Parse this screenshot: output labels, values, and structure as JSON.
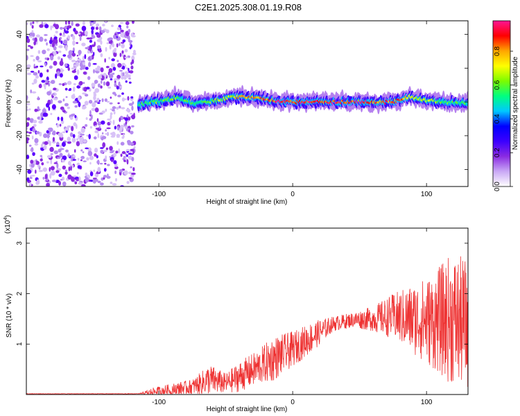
{
  "title": "C2E1.2025.308.01.19.R08",
  "chart_data": [
    {
      "type": "heatmap",
      "xlabel": "Height of straight line (km)",
      "ylabel": "Frequency (Hz)",
      "xlim": [
        -199,
        131
      ],
      "ylim": [
        -50,
        48
      ],
      "xticks": [
        -100,
        0,
        100
      ],
      "yticks": [
        -40,
        -20,
        0,
        20,
        40
      ],
      "colorbar": {
        "label": "Normalized spectral amplitude",
        "range": [
          0,
          0.98
        ],
        "ticks": [
          0.0,
          0.2,
          0.4,
          0.6,
          0.8
        ],
        "colors": [
          "#ffffff",
          "#c9a8f5",
          "#8a2be2",
          "#3b00ff",
          "#0000ff",
          "#00c8ff",
          "#00ff80",
          "#7cfc00",
          "#ffff00",
          "#ffa500",
          "#ff0000",
          "#ff1493"
        ]
      },
      "noise_region": {
        "x": [
          -199,
          -118
        ],
        "y": [
          -50,
          48
        ]
      },
      "ridge": [
        {
          "x": -115,
          "f": -2,
          "amp": 0.55
        },
        {
          "x": -105,
          "f": 0,
          "amp": 0.6
        },
        {
          "x": -95,
          "f": 1,
          "amp": 0.6
        },
        {
          "x": -85,
          "f": 3,
          "amp": 0.6
        },
        {
          "x": -75,
          "f": -1,
          "amp": 0.55
        },
        {
          "x": -65,
          "f": 0,
          "amp": 0.6
        },
        {
          "x": -55,
          "f": 1,
          "amp": 0.65
        },
        {
          "x": -45,
          "f": 3,
          "amp": 0.7
        },
        {
          "x": -35,
          "f": 3,
          "amp": 0.8
        },
        {
          "x": -25,
          "f": 2,
          "amp": 0.8
        },
        {
          "x": -15,
          "f": 1,
          "amp": 0.9
        },
        {
          "x": 0,
          "f": 0,
          "amp": 0.95
        },
        {
          "x": 20,
          "f": 0,
          "amp": 0.95
        },
        {
          "x": 40,
          "f": 0,
          "amp": 0.95
        },
        {
          "x": 60,
          "f": 0,
          "amp": 0.9
        },
        {
          "x": 75,
          "f": 0,
          "amp": 0.85
        },
        {
          "x": 88,
          "f": 3,
          "amp": 0.8
        },
        {
          "x": 100,
          "f": 1,
          "amp": 0.65
        },
        {
          "x": 115,
          "f": 0,
          "amp": 0.6
        },
        {
          "x": 131,
          "f": -1,
          "amp": 0.55
        }
      ]
    },
    {
      "type": "line",
      "xlabel": "Height of straight line (km)",
      "ylabel": "SNR (10 * v/v)",
      "yscale_label": "(x10",
      "yscale_exp": "4",
      "xlim": [
        -199,
        131
      ],
      "ylim": [
        0,
        3.3
      ],
      "xticks": [
        -100,
        0,
        100
      ],
      "yticks": [
        1,
        2,
        3
      ],
      "color": "#ee3333",
      "envelope": [
        {
          "x": -199,
          "mean": 0.0,
          "spread": 0.0
        },
        {
          "x": -115,
          "mean": 0.0,
          "spread": 0.02
        },
        {
          "x": -105,
          "mean": 0.05,
          "spread": 0.08
        },
        {
          "x": -90,
          "mean": 0.1,
          "spread": 0.12
        },
        {
          "x": -75,
          "mean": 0.15,
          "spread": 0.15
        },
        {
          "x": -62,
          "mean": 0.3,
          "spread": 0.3
        },
        {
          "x": -50,
          "mean": 0.22,
          "spread": 0.2
        },
        {
          "x": -40,
          "mean": 0.35,
          "spread": 0.3
        },
        {
          "x": -25,
          "mean": 0.55,
          "spread": 0.35
        },
        {
          "x": -15,
          "mean": 0.7,
          "spread": 0.45
        },
        {
          "x": 0,
          "mean": 0.9,
          "spread": 0.35
        },
        {
          "x": 15,
          "mean": 1.15,
          "spread": 0.3
        },
        {
          "x": 30,
          "mean": 1.4,
          "spread": 0.15
        },
        {
          "x": 45,
          "mean": 1.48,
          "spread": 0.15
        },
        {
          "x": 60,
          "mean": 1.5,
          "spread": 0.25
        },
        {
          "x": 75,
          "mean": 1.55,
          "spread": 0.45
        },
        {
          "x": 90,
          "mean": 1.5,
          "spread": 0.7
        },
        {
          "x": 105,
          "mean": 1.45,
          "spread": 0.95
        },
        {
          "x": 118,
          "mean": 1.5,
          "spread": 1.3
        },
        {
          "x": 131,
          "mean": 1.4,
          "spread": 1.3
        }
      ]
    }
  ]
}
